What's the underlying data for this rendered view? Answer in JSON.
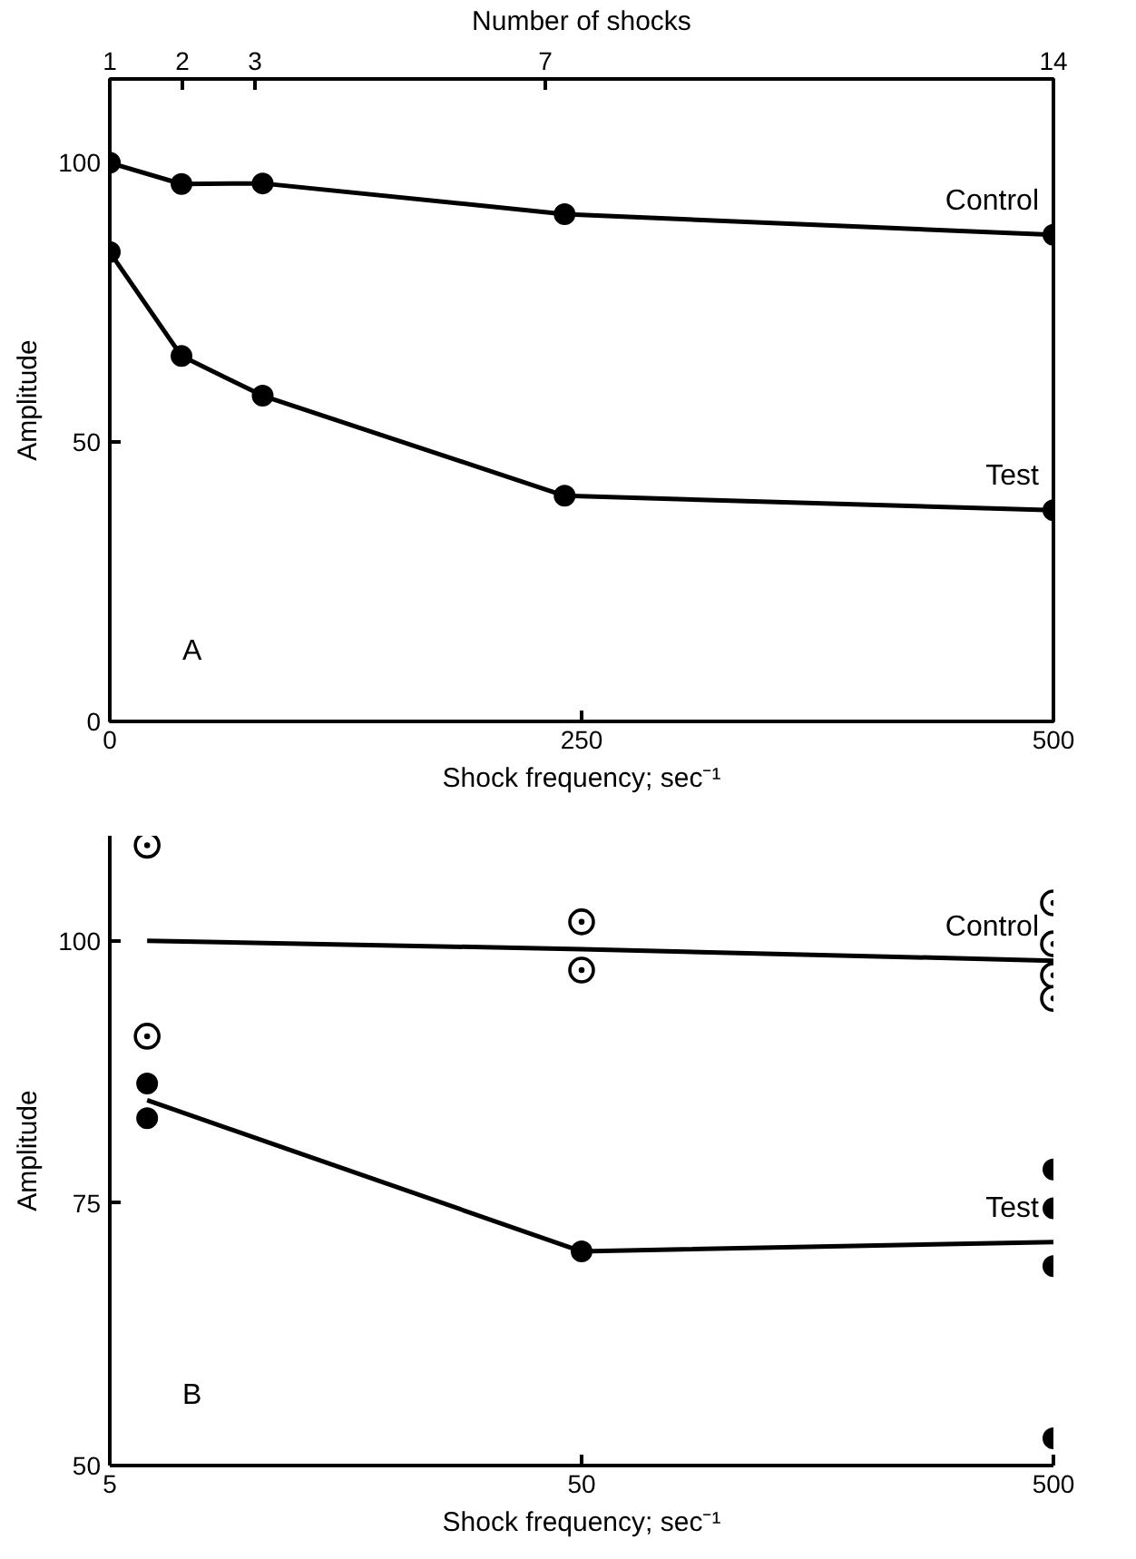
{
  "chart_data": [
    {
      "type": "line",
      "xlabel": "Shock frequency; sec⁻¹",
      "ylabel": "Amplitude",
      "x2label": "Number of shocks",
      "xlim": [
        0,
        500
      ],
      "ylim": [
        0,
        115
      ],
      "xticks": [
        0,
        250,
        500
      ],
      "yticks": [
        0,
        50,
        100
      ],
      "x2lim": [
        1,
        14
      ],
      "x2ticks": [
        1,
        2,
        3,
        7,
        14
      ],
      "grid": false,
      "marker": "circle",
      "annotations": [
        "A"
      ],
      "series": [
        {
          "name": "Control",
          "color": "#000000",
          "x": [
            0,
            38,
            81,
            241,
            500
          ],
          "values": [
            100,
            96.2,
            96.3,
            90.8,
            87.1
          ]
        },
        {
          "name": "Test",
          "color": "#000000",
          "x": [
            0,
            38,
            81,
            241,
            500
          ],
          "values": [
            84.0,
            65.4,
            58.3,
            40.4,
            37.8
          ]
        }
      ]
    },
    {
      "type": "line",
      "xlabel": "Shock frequency; sec⁻¹",
      "ylabel": "Amplitude",
      "log": "x",
      "xlim": [
        5,
        500
      ],
      "ylim": [
        50,
        110
      ],
      "xticks": [
        5,
        50,
        500
      ],
      "yticks": [
        50,
        75,
        100
      ],
      "grid": false,
      "annotations": [
        "B"
      ],
      "series": [
        {
          "name": "Control",
          "color": "#000000",
          "marker": "none",
          "x": [
            6,
            50,
            500
          ],
          "values": [
            100,
            99.2,
            98.1
          ]
        },
        {
          "type": "scatter",
          "color": "#000000",
          "marker": "circle_dot",
          "x": [
            6,
            6,
            50,
            50,
            500,
            500,
            500,
            500
          ],
          "values": [
            109.1,
            90.9,
            101.8,
            97.2,
            103.6,
            99.7,
            96.7,
            94.5
          ]
        },
        {
          "name": "Test",
          "color": "#000000",
          "marker": "none",
          "x": [
            6,
            50,
            500
          ],
          "values": [
            84.8,
            70.4,
            71.3
          ]
        },
        {
          "type": "scatter",
          "color": "#000000",
          "marker": "circle",
          "x": [
            6,
            6,
            50,
            500,
            500,
            500,
            500
          ],
          "values": [
            86.4,
            83.1,
            70.4,
            78.2,
            74.5,
            69.0,
            52.6
          ]
        }
      ]
    }
  ]
}
